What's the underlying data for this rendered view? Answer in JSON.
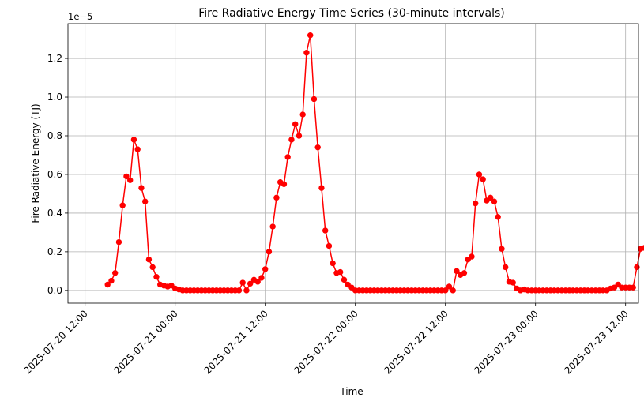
{
  "chart_data": {
    "type": "line",
    "title": "Fire Radiative Energy Time Series (30-minute intervals)",
    "xlabel": "Time",
    "ylabel": "Fire Radiative Energy (TJ)",
    "y_offset_text": "1e−5",
    "y_scale": 1e-05,
    "xlim": [
      "2025-07-20 09:43",
      "2025-07-23 13:43"
    ],
    "ylim": [
      -0.066,
      1.38
    ],
    "grid": true,
    "x_ticks": [
      {
        "t": "2025-07-20 12:00",
        "label": "2025-07-20 12:00"
      },
      {
        "t": "2025-07-21 00:00",
        "label": "2025-07-21 00:00"
      },
      {
        "t": "2025-07-21 12:00",
        "label": "2025-07-21 12:00"
      },
      {
        "t": "2025-07-22 00:00",
        "label": "2025-07-22 00:00"
      },
      {
        "t": "2025-07-22 12:00",
        "label": "2025-07-22 12:00"
      },
      {
        "t": "2025-07-23 00:00",
        "label": "2025-07-23 00:00"
      },
      {
        "t": "2025-07-23 12:00",
        "label": "2025-07-23 12:00"
      }
    ],
    "y_ticks": [
      {
        "v": 0.0,
        "label": "0.0"
      },
      {
        "v": 0.2,
        "label": "0.2"
      },
      {
        "v": 0.4,
        "label": "0.4"
      },
      {
        "v": 0.6,
        "label": "0.6"
      },
      {
        "v": 0.8,
        "label": "0.8"
      },
      {
        "v": 1.0,
        "label": "1.0"
      },
      {
        "v": 1.2,
        "label": "1.2"
      }
    ],
    "series": [
      {
        "color": "#ff0000",
        "x_start": "2025-07-20 15:00",
        "x_step_minutes": 30,
        "y": [
          0.03,
          0.05,
          0.09,
          0.25,
          0.44,
          0.59,
          0.57,
          0.78,
          0.73,
          0.53,
          0.46,
          0.16,
          0.12,
          0.07,
          0.03,
          0.025,
          0.02,
          0.025,
          0.01,
          0.005,
          0,
          0,
          0,
          0,
          0,
          0,
          0,
          0,
          0,
          0,
          0,
          0,
          0,
          0,
          0,
          0,
          0.04,
          0,
          0.035,
          0.055,
          0.045,
          0.065,
          0.11,
          0.2,
          0.33,
          0.48,
          0.56,
          0.55,
          0.69,
          0.78,
          0.86,
          0.8,
          0.91,
          1.23,
          1.32,
          0.99,
          0.74,
          0.53,
          0.31,
          0.23,
          0.14,
          0.09,
          0.095,
          0.055,
          0.03,
          0.015,
          0,
          0,
          0,
          0,
          0,
          0,
          0,
          0,
          0,
          0,
          0,
          0,
          0,
          0,
          0,
          0,
          0,
          0,
          0,
          0,
          0,
          0,
          0,
          0,
          0,
          0.02,
          0,
          0.1,
          0.08,
          0.09,
          0.16,
          0.175,
          0.45,
          0.6,
          0.575,
          0.465,
          0.48,
          0.46,
          0.38,
          0.215,
          0.12,
          0.045,
          0.04,
          0.01,
          0,
          0.005,
          0,
          0,
          0,
          0,
          0,
          0,
          0,
          0,
          0,
          0,
          0,
          0,
          0,
          0,
          0,
          0,
          0,
          0,
          0,
          0,
          0,
          0,
          0.01,
          0.015,
          0.03,
          0.015,
          0.015,
          0.015,
          0.015,
          0.12,
          0.215,
          0.22
        ]
      }
    ]
  }
}
